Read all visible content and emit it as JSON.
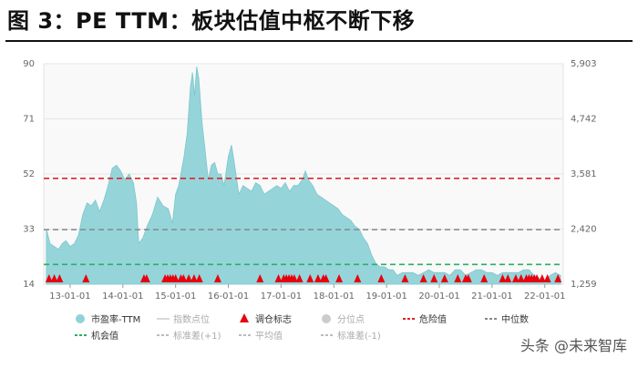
{
  "title": "图 3：PE TTM：板块估值中枢不断下移",
  "watermark": "头条 @未来智库",
  "chart_data": {
    "type": "area",
    "x_ticks": [
      "13-01-01",
      "14-01-01",
      "15-01-01",
      "16-01-01",
      "17-01-01",
      "18-01-01",
      "19-01-01",
      "20-01-01",
      "21-01-01",
      "22-01-01"
    ],
    "y_left": {
      "range": [
        14,
        90
      ],
      "ticks": [
        "14",
        "33",
        "52",
        "71",
        "90"
      ]
    },
    "y_right": {
      "range": [
        1259,
        5903
      ],
      "ticks": [
        "1,259",
        "2,420",
        "3,581",
        "4,742",
        "5,903"
      ]
    },
    "series": [
      {
        "name": "市盈率-TTM",
        "color": "#8FD3D8",
        "x": [
          2012.55,
          2012.62,
          2012.7,
          2012.78,
          2012.85,
          2012.92,
          2013.0,
          2013.08,
          2013.16,
          2013.24,
          2013.32,
          2013.4,
          2013.48,
          2013.56,
          2013.64,
          2013.72,
          2013.8,
          2013.88,
          2013.96,
          2014.04,
          2014.12,
          2014.2,
          2014.26,
          2014.3,
          2014.38,
          2014.46,
          2014.56,
          2014.66,
          2014.76,
          2014.86,
          2014.94,
          2015.0,
          2015.06,
          2015.1,
          2015.16,
          2015.22,
          2015.28,
          2015.32,
          2015.36,
          2015.4,
          2015.44,
          2015.5,
          2015.56,
          2015.62,
          2015.68,
          2015.74,
          2015.8,
          2015.86,
          2015.92,
          2016.0,
          2016.06,
          2016.12,
          2016.2,
          2016.28,
          2016.36,
          2016.44,
          2016.52,
          2016.6,
          2016.68,
          2016.76,
          2016.84,
          2016.92,
          2017.0,
          2017.08,
          2017.16,
          2017.24,
          2017.32,
          2017.4,
          2017.46,
          2017.52,
          2017.6,
          2017.68,
          2017.76,
          2017.84,
          2017.92,
          2018.0,
          2018.08,
          2018.16,
          2018.24,
          2018.32,
          2018.4,
          2018.48,
          2018.56,
          2018.64,
          2018.72,
          2018.8,
          2018.88,
          2018.96,
          2019.04,
          2019.12,
          2019.2,
          2019.3,
          2019.4,
          2019.5,
          2019.6,
          2019.7,
          2019.8,
          2019.9,
          2020.0,
          2020.1,
          2020.2,
          2020.3,
          2020.4,
          2020.5,
          2020.6,
          2020.7,
          2020.8,
          2020.9,
          2021.0,
          2021.1,
          2021.2,
          2021.3,
          2021.4,
          2021.5,
          2021.6,
          2021.7,
          2021.8,
          2021.9,
          2022.0,
          2022.1,
          2022.2,
          2022.3
        ],
        "y": [
          33,
          28,
          27,
          26,
          28,
          29,
          27,
          28,
          31,
          38,
          42,
          41,
          43,
          39,
          43,
          48,
          54,
          55,
          53,
          50,
          52,
          49,
          42,
          28,
          30,
          34,
          38,
          44,
          41,
          40,
          35,
          45,
          48,
          52,
          58,
          66,
          82,
          87,
          79,
          89,
          85,
          70,
          60,
          50,
          55,
          56,
          52,
          52,
          48,
          58,
          62,
          55,
          45,
          48,
          47,
          46,
          49,
          48,
          45,
          46,
          47,
          48,
          47,
          49,
          46,
          48,
          48,
          50,
          53,
          50,
          48,
          45,
          44,
          43,
          42,
          41,
          40,
          38,
          37,
          36,
          34,
          33,
          30,
          28,
          24,
          21,
          20,
          20,
          19,
          19,
          17,
          18,
          18,
          18,
          17,
          18,
          19,
          18,
          18,
          18,
          17,
          19,
          19,
          17,
          18,
          19,
          19,
          18,
          18,
          17,
          18,
          18,
          18,
          18,
          19,
          19,
          17,
          16,
          15,
          17,
          18,
          17
        ]
      },
      {
        "name": "指数点位",
        "color": "#D8D8D8"
      },
      {
        "name": "调仓标志",
        "color": "#E8000D",
        "x": [
          2012.6,
          2012.7,
          2012.8,
          2013.3,
          2014.4,
          2014.45,
          2014.8,
          2014.85,
          2014.9,
          2014.95,
          2015.0,
          2015.1,
          2015.15,
          2015.25,
          2015.35,
          2015.45,
          2015.8,
          2016.6,
          2016.95,
          2017.05,
          2017.1,
          2017.15,
          2017.2,
          2017.25,
          2017.35,
          2017.55,
          2017.7,
          2017.8,
          2017.85,
          2018.1,
          2018.45,
          2018.9,
          2019.35,
          2019.7,
          2019.9,
          2020.1,
          2020.35,
          2020.5,
          2020.55,
          2020.85,
          2021.2,
          2021.3,
          2021.45,
          2021.55,
          2021.65,
          2021.7,
          2021.75,
          2021.8,
          2021.85,
          2021.95,
          2022.05,
          2022.25
        ]
      },
      {
        "name": "分位点",
        "color": "#CCCCCC"
      },
      {
        "name": "危险值",
        "color": "#D9262B",
        "value": 50.5
      },
      {
        "name": "中位数",
        "color": "#888888",
        "value": 32.8
      },
      {
        "name": "机会值",
        "color": "#2BAE66",
        "value": 20.8
      },
      {
        "name": "标准差(+1)",
        "color": "#BBBBBB"
      },
      {
        "name": "平均值",
        "color": "#BBBBBB"
      },
      {
        "name": "标准差(-1)",
        "color": "#BBBBBB"
      }
    ]
  }
}
